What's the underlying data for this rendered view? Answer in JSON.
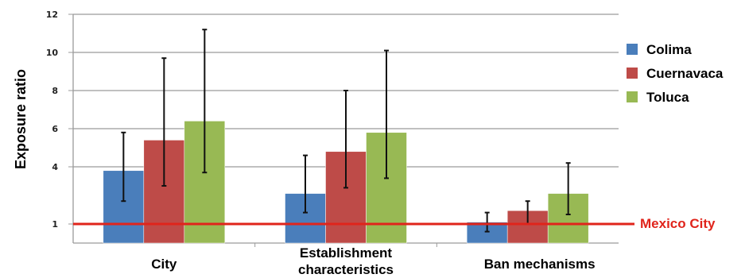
{
  "chart_data": {
    "type": "bar",
    "ylabel": "Exposure ratio",
    "categories": [
      "City",
      "Establishment characteristics",
      "Ban mechanisms"
    ],
    "ylim": [
      0,
      12
    ],
    "yticks": [
      1,
      4,
      6,
      8,
      10,
      12
    ],
    "grid": true,
    "legend_position": "right",
    "series": [
      {
        "name": "Colima",
        "color": "#4a7ebb",
        "values": [
          3.8,
          2.6,
          1.1
        ],
        "err_low": [
          2.2,
          1.6,
          0.6
        ],
        "err_high": [
          5.8,
          4.6,
          1.6
        ]
      },
      {
        "name": "Cuernavaca",
        "color": "#be4b48",
        "values": [
          5.4,
          4.8,
          1.7
        ],
        "err_low": [
          3.0,
          2.9,
          1.0
        ],
        "err_high": [
          9.7,
          8.0,
          2.2
        ]
      },
      {
        "name": "Toluca",
        "color": "#98b954",
        "values": [
          6.4,
          5.8,
          2.6
        ],
        "err_low": [
          3.7,
          3.4,
          1.5
        ],
        "err_high": [
          11.2,
          10.1,
          4.2
        ]
      }
    ],
    "reference_line": {
      "value": 1,
      "label": "Mexico City",
      "color": "#e0241b"
    }
  }
}
